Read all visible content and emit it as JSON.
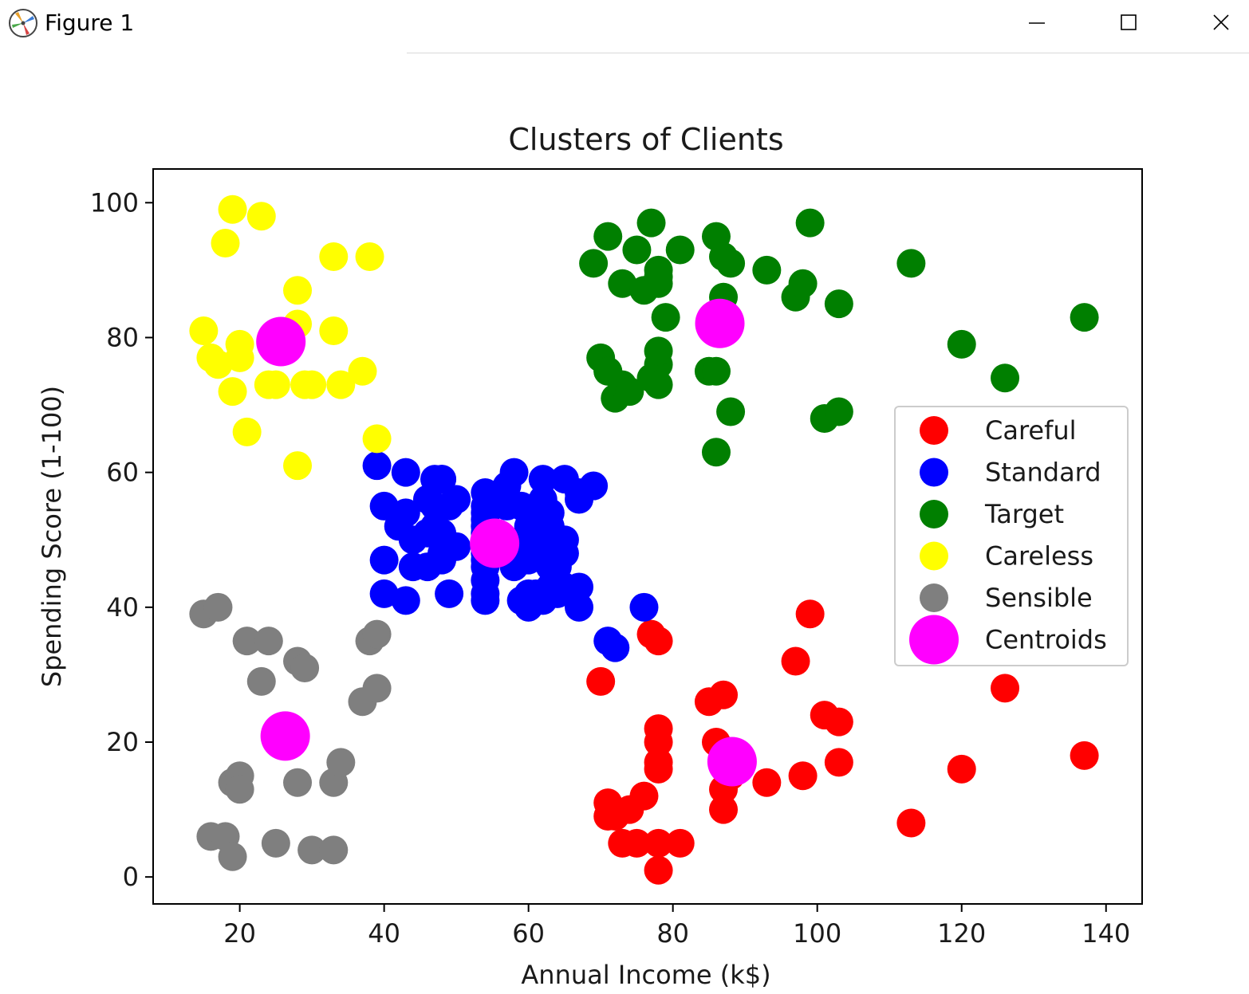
{
  "window": {
    "title": "Figure 1",
    "icons": {
      "app": "matplotlib-logo-icon",
      "minimize": "minimize-icon",
      "maximize": "maximize-icon",
      "close": "close-icon"
    }
  },
  "chart_data": {
    "type": "scatter",
    "title": "Clusters of Clients",
    "xlabel": "Annual Income (k$)",
    "ylabel": "Spending Score (1-100)",
    "xlim": [
      8,
      145
    ],
    "ylim": [
      -4,
      105
    ],
    "xticks": [
      20,
      40,
      60,
      80,
      100,
      120,
      140
    ],
    "yticks": [
      0,
      20,
      40,
      60,
      80,
      100
    ],
    "grid": false,
    "legend_position": "center-right",
    "series": [
      {
        "name": "Careful",
        "color": "#ff0000",
        "points": [
          [
            70,
            29
          ],
          [
            71,
            11
          ],
          [
            71,
            9
          ],
          [
            72,
            9
          ],
          [
            73,
            5
          ],
          [
            74,
            10
          ],
          [
            75,
            5
          ],
          [
            76,
            12
          ],
          [
            77,
            36
          ],
          [
            78,
            35
          ],
          [
            78,
            22
          ],
          [
            78,
            20
          ],
          [
            78,
            17
          ],
          [
            78,
            16
          ],
          [
            78,
            1
          ],
          [
            78,
            5
          ],
          [
            81,
            5
          ],
          [
            85,
            26
          ],
          [
            87,
            27
          ],
          [
            86,
            20
          ],
          [
            87,
            13
          ],
          [
            87,
            10
          ],
          [
            88,
            15
          ],
          [
            93,
            14
          ],
          [
            97,
            32
          ],
          [
            98,
            15
          ],
          [
            99,
            39
          ],
          [
            101,
            24
          ],
          [
            103,
            23
          ],
          [
            103,
            17
          ],
          [
            113,
            8
          ],
          [
            120,
            16
          ],
          [
            126,
            28
          ],
          [
            137,
            18
          ]
        ]
      },
      {
        "name": "Standard",
        "color": "#0000ff",
        "points": [
          [
            39,
            61
          ],
          [
            40,
            55
          ],
          [
            40,
            47
          ],
          [
            40,
            42
          ],
          [
            42,
            52
          ],
          [
            43,
            60
          ],
          [
            43,
            54
          ],
          [
            43,
            41
          ],
          [
            44,
            50
          ],
          [
            44,
            46
          ],
          [
            46,
            51
          ],
          [
            46,
            46
          ],
          [
            46,
            56
          ],
          [
            47,
            55
          ],
          [
            47,
            52
          ],
          [
            47,
            59
          ],
          [
            48,
            51
          ],
          [
            48,
            59
          ],
          [
            48,
            50
          ],
          [
            48,
            48
          ],
          [
            48,
            59
          ],
          [
            48,
            47
          ],
          [
            49,
            55
          ],
          [
            49,
            42
          ],
          [
            50,
            49
          ],
          [
            50,
            56
          ],
          [
            54,
            47
          ],
          [
            54,
            54
          ],
          [
            54,
            53
          ],
          [
            54,
            48
          ],
          [
            54,
            52
          ],
          [
            54,
            42
          ],
          [
            54,
            51
          ],
          [
            54,
            55
          ],
          [
            54,
            41
          ],
          [
            54,
            44
          ],
          [
            54,
            57
          ],
          [
            54,
            46
          ],
          [
            57,
            58
          ],
          [
            57,
            55
          ],
          [
            58,
            60
          ],
          [
            58,
            46
          ],
          [
            59,
            55
          ],
          [
            59,
            41
          ],
          [
            60,
            49
          ],
          [
            60,
            40
          ],
          [
            60,
            42
          ],
          [
            60,
            52
          ],
          [
            60,
            47
          ],
          [
            60,
            50
          ],
          [
            61,
            42
          ],
          [
            61,
            49
          ],
          [
            62,
            41
          ],
          [
            62,
            48
          ],
          [
            62,
            59
          ],
          [
            62,
            55
          ],
          [
            62,
            56
          ],
          [
            62,
            42
          ],
          [
            63,
            50
          ],
          [
            63,
            46
          ],
          [
            63,
            43
          ],
          [
            63,
            48
          ],
          [
            63,
            52
          ],
          [
            63,
            54
          ],
          [
            64,
            42
          ],
          [
            64,
            46
          ],
          [
            65,
            48
          ],
          [
            65,
            50
          ],
          [
            65,
            43
          ],
          [
            65,
            59
          ],
          [
            67,
            43
          ],
          [
            67,
            57
          ],
          [
            67,
            56
          ],
          [
            67,
            40
          ],
          [
            69,
            58
          ],
          [
            71,
            35
          ],
          [
            72,
            34
          ],
          [
            76,
            40
          ]
        ]
      },
      {
        "name": "Target",
        "color": "#007f00",
        "points": [
          [
            69,
            91
          ],
          [
            70,
            77
          ],
          [
            71,
            95
          ],
          [
            71,
            75
          ],
          [
            71,
            75
          ],
          [
            72,
            71
          ],
          [
            73,
            88
          ],
          [
            73,
            73
          ],
          [
            74,
            72
          ],
          [
            75,
            93
          ],
          [
            76,
            87
          ],
          [
            77,
            97
          ],
          [
            77,
            74
          ],
          [
            78,
            90
          ],
          [
            78,
            88
          ],
          [
            78,
            76
          ],
          [
            78,
            89
          ],
          [
            78,
            78
          ],
          [
            78,
            73
          ],
          [
            79,
            83
          ],
          [
            81,
            93
          ],
          [
            85,
            75
          ],
          [
            86,
            95
          ],
          [
            86,
            63
          ],
          [
            86,
            75
          ],
          [
            87,
            92
          ],
          [
            87,
            86
          ],
          [
            88,
            69
          ],
          [
            88,
            91
          ],
          [
            93,
            90
          ],
          [
            97,
            86
          ],
          [
            98,
            88
          ],
          [
            99,
            97
          ],
          [
            101,
            68
          ],
          [
            103,
            85
          ],
          [
            103,
            69
          ],
          [
            113,
            91
          ],
          [
            120,
            79
          ],
          [
            126,
            74
          ],
          [
            137,
            83
          ]
        ]
      },
      {
        "name": "Careless",
        "color": "#ffff00",
        "points": [
          [
            15,
            81
          ],
          [
            16,
            77
          ],
          [
            17,
            76
          ],
          [
            18,
            94
          ],
          [
            19,
            72
          ],
          [
            19,
            99
          ],
          [
            20,
            77
          ],
          [
            20,
            79
          ],
          [
            21,
            66
          ],
          [
            23,
            98
          ],
          [
            24,
            73
          ],
          [
            25,
            73
          ],
          [
            28,
            82
          ],
          [
            28,
            61
          ],
          [
            28,
            87
          ],
          [
            29,
            73
          ],
          [
            30,
            73
          ],
          [
            33,
            92
          ],
          [
            33,
            81
          ],
          [
            34,
            73
          ],
          [
            37,
            75
          ],
          [
            38,
            92
          ],
          [
            39,
            65
          ]
        ]
      },
      {
        "name": "Sensible",
        "color": "#7f7f7f",
        "points": [
          [
            15,
            39
          ],
          [
            16,
            6
          ],
          [
            17,
            40
          ],
          [
            18,
            6
          ],
          [
            19,
            3
          ],
          [
            19,
            14
          ],
          [
            20,
            15
          ],
          [
            20,
            13
          ],
          [
            21,
            35
          ],
          [
            23,
            29
          ],
          [
            24,
            35
          ],
          [
            25,
            5
          ],
          [
            28,
            14
          ],
          [
            28,
            32
          ],
          [
            29,
            31
          ],
          [
            30,
            4
          ],
          [
            33,
            4
          ],
          [
            33,
            14
          ],
          [
            34,
            17
          ],
          [
            37,
            26
          ],
          [
            38,
            35
          ],
          [
            39,
            36
          ],
          [
            39,
            28
          ]
        ]
      },
      {
        "name": "Centroids",
        "color": "#ff00ff",
        "points": [
          [
            25.7,
            79.4
          ],
          [
            26.3,
            20.9
          ],
          [
            55.3,
            49.5
          ],
          [
            86.5,
            82.1
          ],
          [
            88.2,
            17.1
          ]
        ]
      }
    ]
  }
}
